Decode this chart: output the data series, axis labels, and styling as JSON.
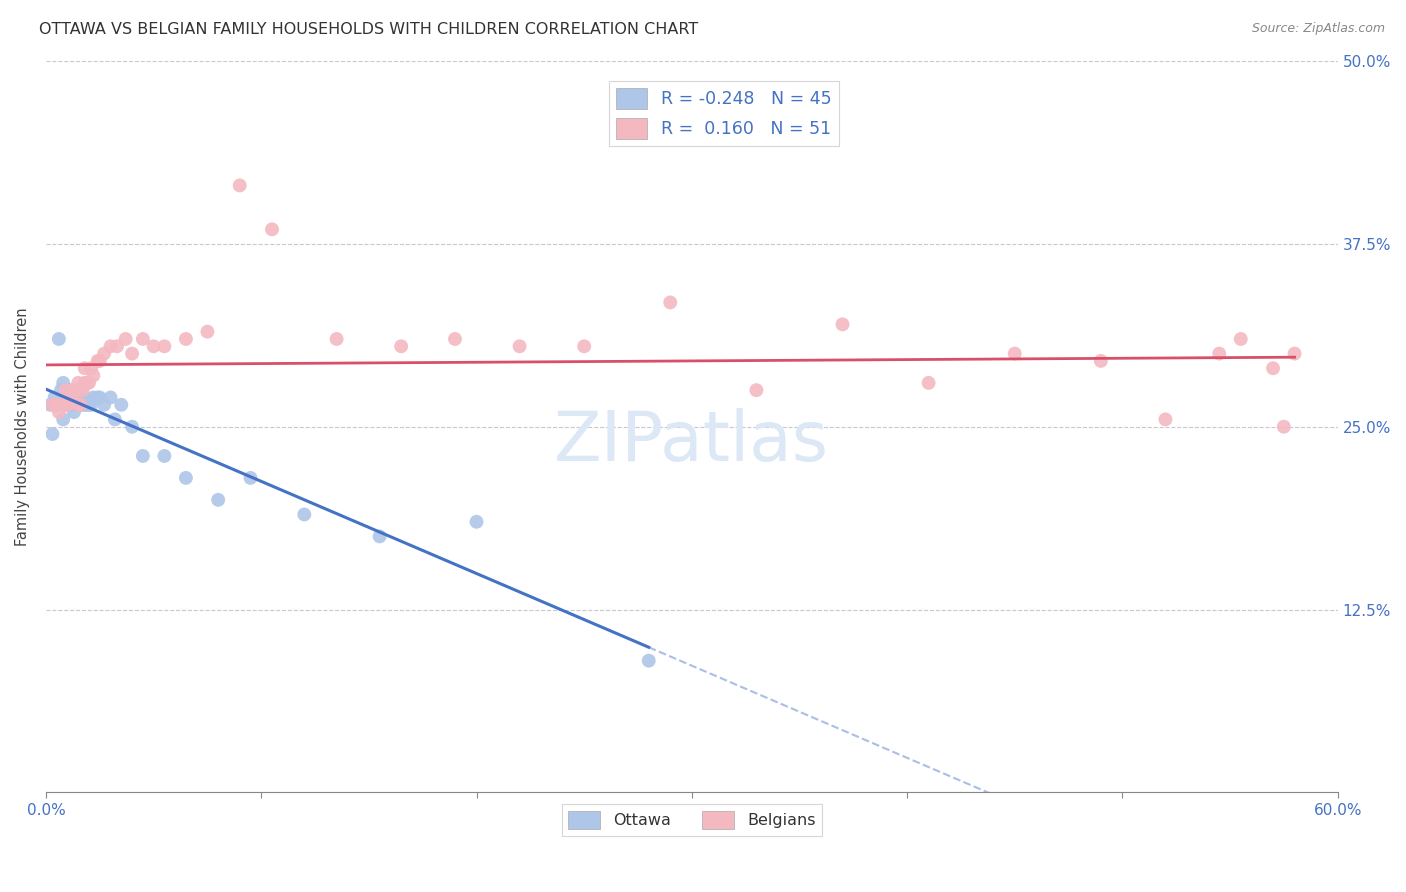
{
  "title": "OTTAWA VS BELGIAN FAMILY HOUSEHOLDS WITH CHILDREN CORRELATION CHART",
  "source": "Source: ZipAtlas.com",
  "ylabel": "Family Households with Children",
  "xlim": [
    0.0,
    0.6
  ],
  "ylim": [
    0.0,
    0.5
  ],
  "xticks": [
    0.0,
    0.1,
    0.2,
    0.3,
    0.4,
    0.5,
    0.6
  ],
  "yticks": [
    0.0,
    0.125,
    0.25,
    0.375,
    0.5
  ],
  "legend_ottawa_R": "-0.248",
  "legend_ottawa_N": "45",
  "legend_belgians_R": "0.160",
  "legend_belgians_N": "51",
  "ottawa_color": "#aec6e8",
  "belgians_color": "#f4b8c1",
  "trendline_ottawa_color": "#4472c4",
  "trendline_belgians_color": "#d94f6a",
  "background_color": "#ffffff",
  "grid_color": "#c8c8d4",
  "watermark_text": "ZIPatlas",
  "watermark_color": "#dce8f5",
  "ottawa_x": [
    0.002,
    0.003,
    0.004,
    0.005,
    0.006,
    0.007,
    0.008,
    0.008,
    0.009,
    0.01,
    0.01,
    0.011,
    0.012,
    0.012,
    0.013,
    0.013,
    0.014,
    0.014,
    0.015,
    0.015,
    0.016,
    0.016,
    0.017,
    0.018,
    0.018,
    0.019,
    0.02,
    0.021,
    0.022,
    0.024,
    0.025,
    0.027,
    0.03,
    0.032,
    0.035,
    0.04,
    0.045,
    0.055,
    0.065,
    0.08,
    0.095,
    0.12,
    0.155,
    0.2,
    0.28
  ],
  "ottawa_y": [
    0.265,
    0.245,
    0.27,
    0.265,
    0.31,
    0.275,
    0.255,
    0.28,
    0.275,
    0.265,
    0.27,
    0.275,
    0.27,
    0.265,
    0.26,
    0.265,
    0.27,
    0.265,
    0.27,
    0.265,
    0.265,
    0.27,
    0.265,
    0.27,
    0.265,
    0.265,
    0.265,
    0.265,
    0.27,
    0.27,
    0.27,
    0.265,
    0.27,
    0.255,
    0.265,
    0.25,
    0.23,
    0.23,
    0.215,
    0.2,
    0.215,
    0.19,
    0.175,
    0.185,
    0.09
  ],
  "belgians_x": [
    0.003,
    0.005,
    0.006,
    0.008,
    0.009,
    0.01,
    0.011,
    0.012,
    0.013,
    0.014,
    0.015,
    0.015,
    0.016,
    0.017,
    0.018,
    0.018,
    0.019,
    0.02,
    0.021,
    0.022,
    0.024,
    0.025,
    0.027,
    0.03,
    0.033,
    0.037,
    0.04,
    0.045,
    0.05,
    0.055,
    0.065,
    0.075,
    0.09,
    0.105,
    0.135,
    0.165,
    0.19,
    0.22,
    0.25,
    0.29,
    0.33,
    0.37,
    0.41,
    0.45,
    0.49,
    0.52,
    0.545,
    0.555,
    0.57,
    0.575,
    0.58
  ],
  "belgians_y": [
    0.265,
    0.265,
    0.26,
    0.265,
    0.275,
    0.265,
    0.27,
    0.275,
    0.27,
    0.275,
    0.265,
    0.28,
    0.265,
    0.275,
    0.28,
    0.29,
    0.28,
    0.28,
    0.29,
    0.285,
    0.295,
    0.295,
    0.3,
    0.305,
    0.305,
    0.31,
    0.3,
    0.31,
    0.305,
    0.305,
    0.31,
    0.315,
    0.415,
    0.385,
    0.31,
    0.305,
    0.31,
    0.305,
    0.305,
    0.335,
    0.275,
    0.32,
    0.28,
    0.3,
    0.295,
    0.255,
    0.3,
    0.31,
    0.29,
    0.25,
    0.3
  ]
}
